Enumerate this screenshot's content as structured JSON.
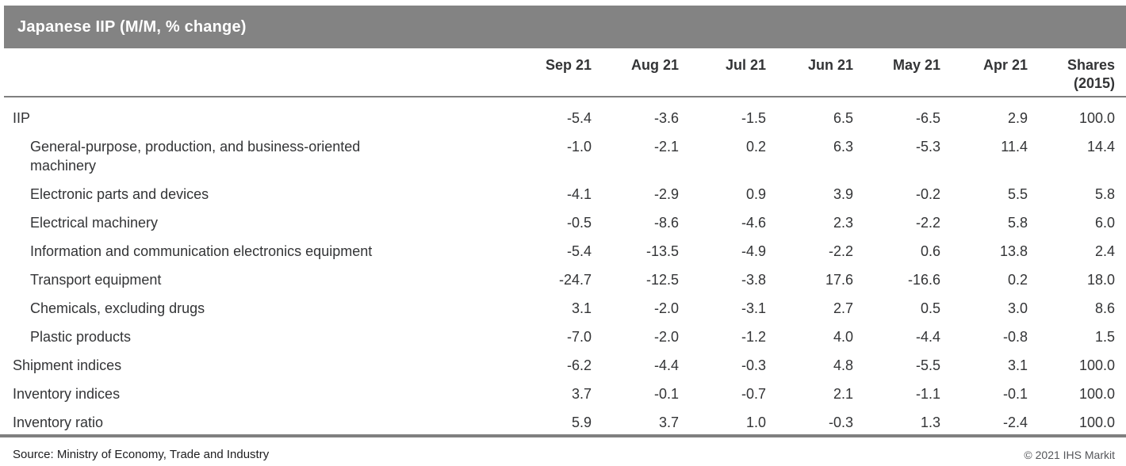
{
  "title": "Japanese IIP (M/M, % change)",
  "header": {
    "months": [
      "Sep 21",
      "Aug 21",
      "Jul 21",
      "Jun 21",
      "May 21",
      "Apr 21"
    ],
    "shares_line1": "Shares",
    "shares_line2": "(2015)"
  },
  "table": {
    "rows": [
      {
        "label": "IIP",
        "indent": false,
        "values": [
          "-5.4",
          "-3.6",
          "-1.5",
          "6.5",
          "-6.5",
          "2.9",
          "100.0"
        ]
      },
      {
        "label": "General-purpose, production, and business-oriented machinery",
        "indent": true,
        "values": [
          "-1.0",
          "-2.1",
          "0.2",
          "6.3",
          "-5.3",
          "11.4",
          "14.4"
        ]
      },
      {
        "label": "Electronic parts and devices",
        "indent": true,
        "values": [
          "-4.1",
          "-2.9",
          "0.9",
          "3.9",
          "-0.2",
          "5.5",
          "5.8"
        ]
      },
      {
        "label": "Electrical machinery",
        "indent": true,
        "values": [
          "-0.5",
          "-8.6",
          "-4.6",
          "2.3",
          "-2.2",
          "5.8",
          "6.0"
        ]
      },
      {
        "label": "Information and communication electronics equipment",
        "indent": true,
        "values": [
          "-5.4",
          "-13.5",
          "-4.9",
          "-2.2",
          "0.6",
          "13.8",
          "2.4"
        ]
      },
      {
        "label": "Transport equipment",
        "indent": true,
        "values": [
          "-24.7",
          "-12.5",
          "-3.8",
          "17.6",
          "-16.6",
          "0.2",
          "18.0"
        ]
      },
      {
        "label": "Chemicals, excluding drugs",
        "indent": true,
        "values": [
          "3.1",
          "-2.0",
          "-3.1",
          "2.7",
          "0.5",
          "3.0",
          "8.6"
        ]
      },
      {
        "label": "Plastic products",
        "indent": true,
        "values": [
          "-7.0",
          "-2.0",
          "-1.2",
          "4.0",
          "-4.4",
          "-0.8",
          "1.5"
        ]
      },
      {
        "label": "Shipment indices",
        "indent": false,
        "values": [
          "-6.2",
          "-4.4",
          "-0.3",
          "4.8",
          "-5.5",
          "3.1",
          "100.0"
        ]
      },
      {
        "label": "Inventory indices",
        "indent": false,
        "values": [
          "3.7",
          "-0.1",
          "-0.7",
          "2.1",
          "-1.1",
          "-0.1",
          "100.0"
        ]
      },
      {
        "label": "Inventory ratio",
        "indent": false,
        "values": [
          "5.9",
          "3.7",
          "1.0",
          "-0.3",
          "1.3",
          "-2.4",
          "100.0"
        ]
      }
    ]
  },
  "footer": {
    "source": "Source: Ministry of Economy, Trade and Industry",
    "copyright": "© 2021 IHS Markit"
  },
  "colors": {
    "title_bar_bg": "#838383",
    "title_text": "#ffffff",
    "body_text": "#333436",
    "rule_gray": "#7f7f7f",
    "copyright_gray": "#55565a"
  },
  "chart_data": {
    "type": "table",
    "title": "Japanese IIP (M/M, % change)",
    "columns": [
      "Sep 21",
      "Aug 21",
      "Jul 21",
      "Jun 21",
      "May 21",
      "Apr 21",
      "Shares (2015)"
    ],
    "rows": [
      {
        "label": "IIP",
        "indent": false,
        "values": [
          -5.4,
          -3.6,
          -1.5,
          6.5,
          -6.5,
          2.9,
          100.0
        ]
      },
      {
        "label": "General-purpose, production, and business-oriented machinery",
        "indent": true,
        "values": [
          -1.0,
          -2.1,
          0.2,
          6.3,
          -5.3,
          11.4,
          14.4
        ]
      },
      {
        "label": "Electronic parts and devices",
        "indent": true,
        "values": [
          -4.1,
          -2.9,
          0.9,
          3.9,
          -0.2,
          5.5,
          5.8
        ]
      },
      {
        "label": "Electrical machinery",
        "indent": true,
        "values": [
          -0.5,
          -8.6,
          -4.6,
          2.3,
          -2.2,
          5.8,
          6.0
        ]
      },
      {
        "label": "Information and communication electronics equipment",
        "indent": true,
        "values": [
          -5.4,
          -13.5,
          -4.9,
          -2.2,
          0.6,
          13.8,
          2.4
        ]
      },
      {
        "label": "Transport equipment",
        "indent": true,
        "values": [
          -24.7,
          -12.5,
          -3.8,
          17.6,
          -16.6,
          0.2,
          18.0
        ]
      },
      {
        "label": "Chemicals, excluding drugs",
        "indent": true,
        "values": [
          3.1,
          -2.0,
          -3.1,
          2.7,
          0.5,
          3.0,
          8.6
        ]
      },
      {
        "label": "Plastic products",
        "indent": true,
        "values": [
          -7.0,
          -2.0,
          -1.2,
          4.0,
          -4.4,
          -0.8,
          1.5
        ]
      },
      {
        "label": "Shipment indices",
        "indent": false,
        "values": [
          -6.2,
          -4.4,
          -0.3,
          4.8,
          -5.5,
          3.1,
          100.0
        ]
      },
      {
        "label": "Inventory indices",
        "indent": false,
        "values": [
          3.7,
          -0.1,
          -0.7,
          2.1,
          -1.1,
          -0.1,
          100.0
        ]
      },
      {
        "label": "Inventory ratio",
        "indent": false,
        "values": [
          5.9,
          3.7,
          1.0,
          -0.3,
          1.3,
          -2.4,
          100.0
        ]
      }
    ],
    "source": "Source: Ministry of Economy, Trade and Industry",
    "copyright": "© 2021 IHS Markit"
  }
}
